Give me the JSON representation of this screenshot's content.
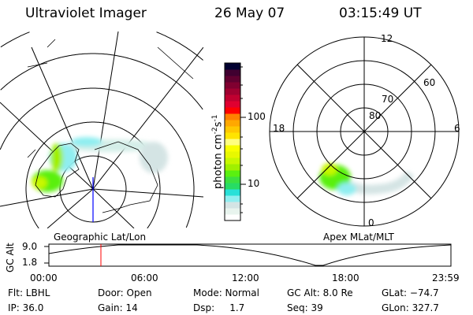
{
  "header": {
    "instrument": "Ultraviolet Imager",
    "date": "26 May 07",
    "time": "03:15:49 UT"
  },
  "left_panel": {
    "label": "Geographic Lat/Lon"
  },
  "right_panel": {
    "label": "Apex MLat/MLT",
    "mlt_labels": [
      "12",
      "18",
      "6",
      "0"
    ],
    "lat_labels": [
      "80",
      "70",
      "60"
    ]
  },
  "colorbar": {
    "unit_label": "photon cm",
    "unit_exp1": "-2",
    "unit_s": "s",
    "unit_exp2": "-1",
    "scale": "log",
    "ticks": [
      "100",
      "10"
    ],
    "colors": [
      "#ffffff",
      "#e8f4ee",
      "#d4e4e4",
      "#8feef0",
      "#28e0d8",
      "#28dc64",
      "#3ce040",
      "#5af010",
      "#a0f000",
      "#c8f800",
      "#e8f800",
      "#f8ff00",
      "#ffff80",
      "#ffe400",
      "#ffc800",
      "#ffa800",
      "#ff8000",
      "#ff0000",
      "#e00030",
      "#c00030",
      "#a00030",
      "#800030",
      "#600030",
      "#400030",
      "#000030"
    ]
  },
  "timeline": {
    "ylabel": "GC Alt",
    "yticks": [
      "9.0",
      "1.8"
    ],
    "xticks": [
      "00:00",
      "06:00",
      "12:00",
      "18:00",
      "23:59"
    ],
    "current_time_color": "#ff0000"
  },
  "info": {
    "row1": [
      "Flt: LBHL",
      "Door: Open",
      "Mode: Normal",
      "GC Alt: 8.0 Re",
      "GLat: −74.7"
    ],
    "row2": [
      "IP: 36.0",
      "Gain: 14",
      "Dsp:     1.7",
      "Seq: 39",
      "GLon: 327.7"
    ]
  }
}
